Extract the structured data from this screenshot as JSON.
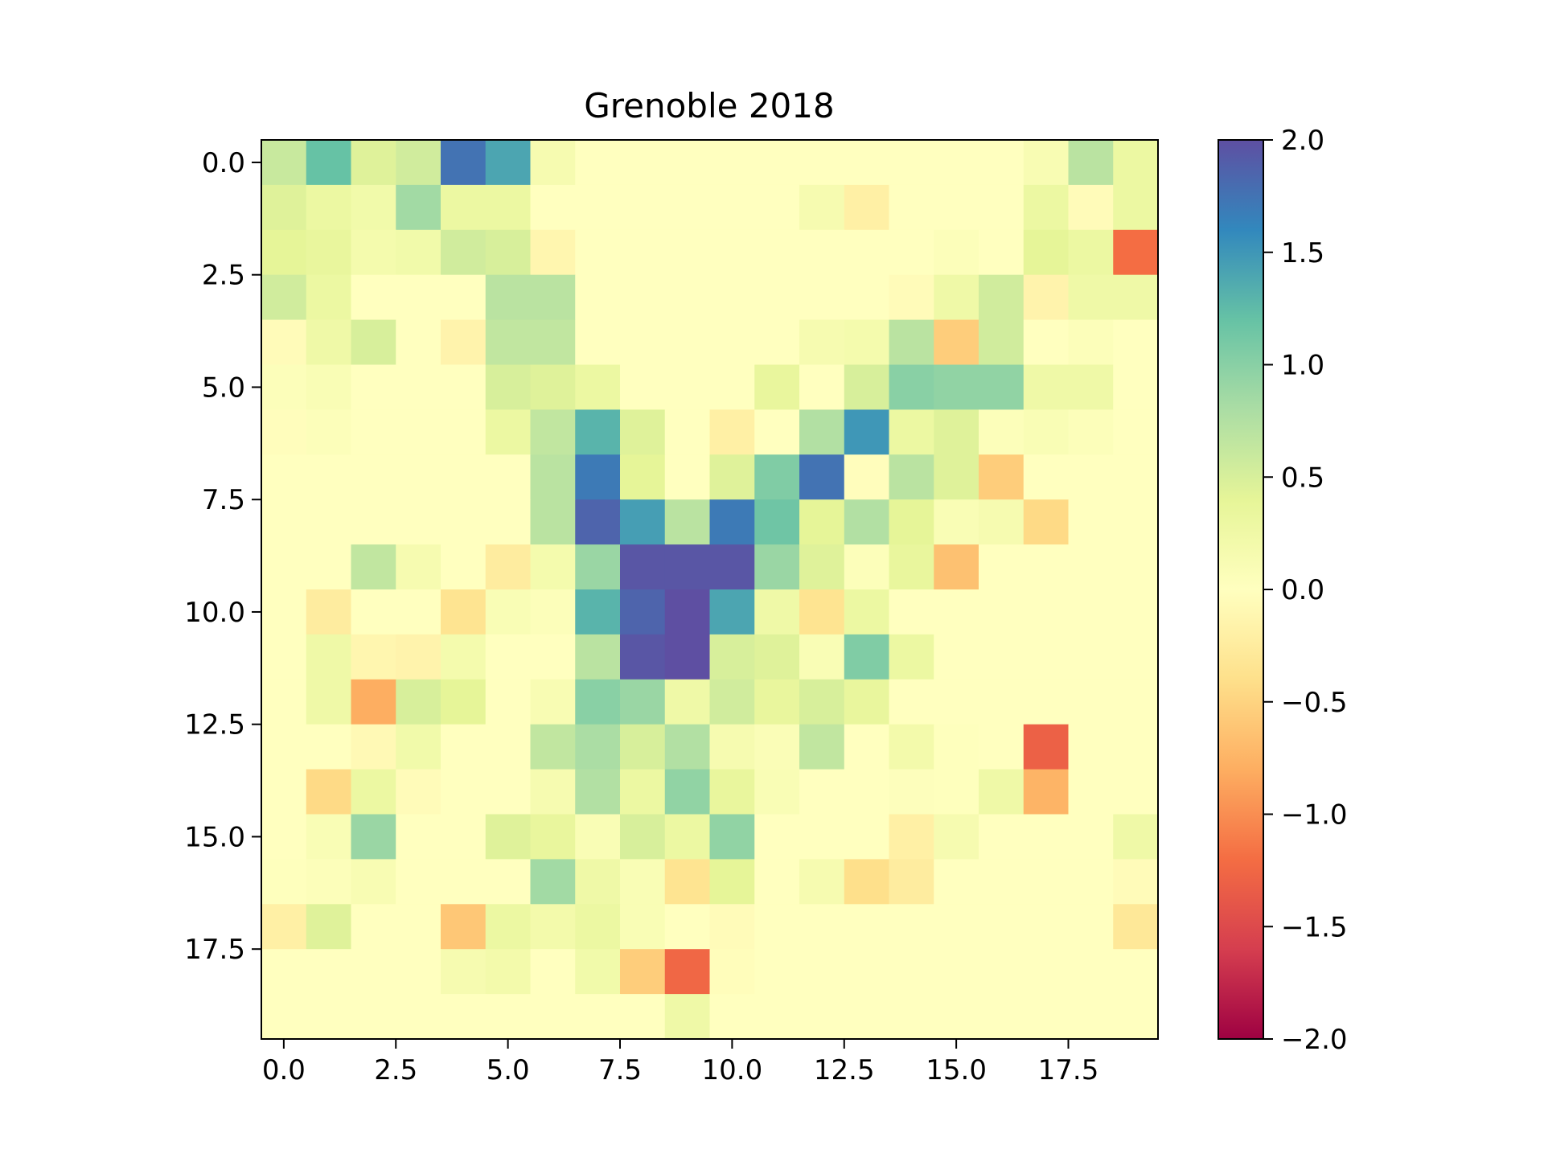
{
  "chart_data": {
    "type": "heatmap",
    "title": "Grenoble 2018",
    "colormap": "Spectral",
    "vmin": -2.0,
    "vmax": 2.0,
    "xlim": [
      -0.5,
      19.5
    ],
    "ylim": [
      19.5,
      -0.5
    ],
    "x_ticks": [
      0.0,
      2.5,
      5.0,
      7.5,
      10.0,
      12.5,
      15.0,
      17.5
    ],
    "x_tick_labels": [
      "0.0",
      "2.5",
      "5.0",
      "7.5",
      "10.0",
      "12.5",
      "15.0",
      "17.5"
    ],
    "y_ticks": [
      0.0,
      2.5,
      5.0,
      7.5,
      10.0,
      12.5,
      15.0,
      17.5
    ],
    "y_tick_labels": [
      "0.0",
      "2.5",
      "5.0",
      "7.5",
      "10.0",
      "12.5",
      "15.0",
      "17.5"
    ],
    "colorbar_ticks": [
      2.0,
      1.5,
      1.0,
      0.5,
      0.0,
      -0.5,
      -1.0,
      -1.5,
      -2.0
    ],
    "colorbar_tick_labels": [
      "2.0",
      "1.5",
      "1.0",
      "0.5",
      "0.0",
      "−0.5",
      "−1.0",
      "−1.5",
      "−2.0"
    ],
    "values": [
      [
        0.6,
        1.2,
        0.45,
        0.55,
        1.75,
        1.4,
        0.15,
        0,
        0,
        0,
        0,
        0,
        0,
        0,
        0,
        0,
        0,
        0.12,
        0.7,
        0.3
      ],
      [
        0.45,
        0.3,
        0.22,
        0.85,
        0.3,
        0.3,
        0,
        0,
        0,
        0,
        0,
        0,
        0.15,
        -0.2,
        0,
        0,
        0,
        0.3,
        -0.05,
        0.3
      ],
      [
        0.4,
        0.35,
        0.18,
        0.22,
        0.55,
        0.5,
        -0.12,
        0,
        0,
        0,
        0,
        0,
        0,
        0,
        0,
        0.05,
        0,
        0.4,
        0.3,
        -1.2
      ],
      [
        0.55,
        0.3,
        0,
        0,
        0,
        0.7,
        0.7,
        0,
        0,
        0,
        0,
        0,
        0,
        0,
        -0.05,
        0.25,
        0.55,
        -0.15,
        0.25,
        0.25
      ],
      [
        -0.05,
        0.25,
        0.5,
        0,
        -0.15,
        0.65,
        0.65,
        0,
        0,
        0,
        0,
        0,
        0.15,
        0.18,
        0.7,
        -0.55,
        0.55,
        0,
        0.05,
        0
      ],
      [
        0.05,
        0.1,
        0,
        0,
        0,
        0.5,
        0.45,
        0.3,
        0,
        0,
        0,
        0.35,
        0,
        0.5,
        1.0,
        0.95,
        0.95,
        0.25,
        0.25,
        0
      ],
      [
        -0.02,
        0.05,
        0,
        0,
        0,
        0.3,
        0.65,
        1.3,
        0.45,
        0,
        -0.2,
        0,
        0.75,
        1.5,
        0.3,
        0.45,
        0.05,
        0.1,
        0.05,
        0
      ],
      [
        0,
        0,
        0,
        0,
        0,
        0,
        0.7,
        1.7,
        0.4,
        0,
        0.45,
        1.05,
        1.75,
        -0.02,
        0.7,
        0.45,
        -0.55,
        0,
        0,
        0
      ],
      [
        0,
        0,
        0,
        0,
        0,
        0,
        0.7,
        1.85,
        1.45,
        0.7,
        1.7,
        1.15,
        0.4,
        0.75,
        0.4,
        0.1,
        0.15,
        -0.45,
        0,
        0
      ],
      [
        0,
        0,
        0.65,
        0.15,
        0,
        -0.25,
        0.18,
        0.9,
        1.95,
        1.95,
        1.95,
        0.9,
        0.45,
        0.05,
        0.35,
        -0.65,
        0,
        0,
        0,
        0
      ],
      [
        0,
        -0.25,
        0,
        0,
        -0.35,
        0.1,
        0.05,
        1.3,
        1.85,
        2.0,
        1.4,
        0.25,
        -0.35,
        0.3,
        0,
        0,
        0,
        0,
        0,
        0
      ],
      [
        0,
        0.25,
        -0.12,
        -0.15,
        0.18,
        0,
        0,
        0.7,
        1.95,
        2.0,
        0.5,
        0.45,
        0.1,
        1.05,
        0.3,
        0,
        0,
        0,
        0,
        0
      ],
      [
        0,
        0.25,
        -0.8,
        0.5,
        0.4,
        0,
        0.12,
        1.0,
        0.9,
        0.25,
        0.55,
        0.35,
        0.5,
        0.35,
        0,
        0,
        0,
        0,
        0,
        0
      ],
      [
        0,
        0,
        -0.08,
        0.22,
        0,
        0,
        0.65,
        0.8,
        0.5,
        0.75,
        0.15,
        0.08,
        0.65,
        0,
        0.2,
        0.02,
        0,
        -1.3,
        0,
        0
      ],
      [
        0,
        -0.45,
        0.3,
        -0.05,
        0,
        0,
        0.15,
        0.75,
        0.3,
        0.95,
        0.35,
        0.1,
        0,
        0,
        0.03,
        0.02,
        0.25,
        -0.75,
        0,
        0
      ],
      [
        0,
        0.1,
        0.9,
        0,
        0,
        0.45,
        0.35,
        0.1,
        0.5,
        0.3,
        0.95,
        0,
        0,
        0,
        -0.2,
        0.15,
        0,
        0,
        0,
        0.25
      ],
      [
        0.02,
        0.05,
        0.12,
        0,
        0,
        0,
        0.85,
        0.25,
        0.1,
        -0.35,
        0.4,
        0,
        0.15,
        -0.4,
        -0.25,
        0,
        0,
        0,
        0,
        -0.05
      ],
      [
        -0.2,
        0.45,
        0,
        0,
        -0.6,
        0.3,
        0.2,
        0.3,
        0.1,
        0,
        -0.05,
        0,
        0,
        0,
        0,
        0,
        0,
        0,
        0,
        -0.3
      ],
      [
        0,
        0,
        0,
        0,
        0.15,
        0.2,
        0,
        0.22,
        -0.55,
        -1.25,
        -0.03,
        0,
        0,
        0,
        0,
        0,
        0,
        0,
        0,
        0
      ],
      [
        0,
        0,
        0,
        0,
        0,
        0,
        0,
        0,
        0,
        0.25,
        0,
        0,
        0,
        0,
        0,
        0,
        0,
        0,
        0,
        0
      ]
    ]
  }
}
